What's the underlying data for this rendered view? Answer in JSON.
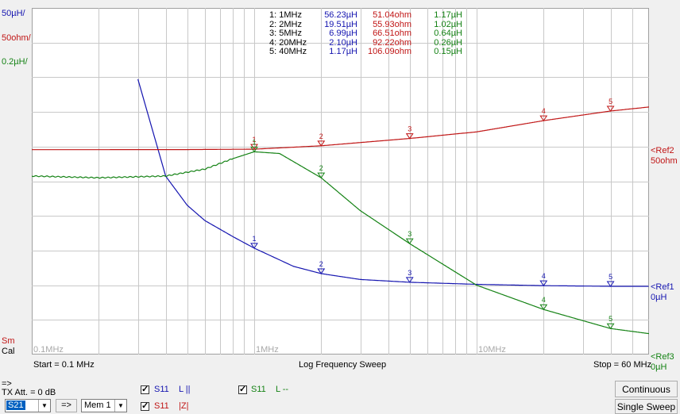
{
  "colors": {
    "blue": "#1515b0",
    "red": "#c01515",
    "green": "#148214",
    "grid": "#c8c8c8"
  },
  "scale_labels": {
    "blue": "50µH/",
    "red": "50ohm/",
    "green": "0.2µH/"
  },
  "ref_labels": [
    {
      "arrow": "<Ref2",
      "unit": "50ohm",
      "color": "red"
    },
    {
      "arrow": "<Ref1",
      "unit": "0µH",
      "color": "blue"
    },
    {
      "arrow": "<Ref3",
      "unit": "0µH",
      "color": "green"
    }
  ],
  "side_labels": {
    "sm": "Sm",
    "cal": "Cal"
  },
  "freq_ticks": [
    "0.1MHz",
    "1MHz",
    "10MHz"
  ],
  "marker_table": [
    {
      "id": "1: 1MHz",
      "l_par": "56.23µH",
      "z": "51.04ohm",
      "l_ser": "1.17µH"
    },
    {
      "id": "2: 2MHz",
      "l_par": "19.51µH",
      "z": "55.93ohm",
      "l_ser": "1.02µH"
    },
    {
      "id": "3: 5MHz",
      "l_par": "6.99µH",
      "z": "66.51ohm",
      "l_ser": "0.64µH"
    },
    {
      "id": "4: 20MHz",
      "l_par": "2.10µH",
      "z": "92.22ohm",
      "l_ser": "0.26µH"
    },
    {
      "id": "5: 40MHz",
      "l_par": "1.17µH",
      "z": "106.09ohm",
      "l_ser": "0.15µH"
    }
  ],
  "bottom_bar": {
    "start": "Start = 0.1 MHz",
    "mode": "Log Frequency Sweep",
    "stop": "Stop = 60 MHz"
  },
  "controls": {
    "arrow_indicator": "=>",
    "tx_att": "TX Att. = 0 dB",
    "port_select": "S21",
    "arrow_button": "=>",
    "mem_select": "Mem 1",
    "traces": [
      {
        "name": "S11",
        "param": "L ||",
        "color": "blue"
      },
      {
        "name": "S11",
        "param": "|Z|",
        "color": "red"
      },
      {
        "name": "S11",
        "param": "L --",
        "color": "green"
      }
    ],
    "continuous": "Continuous",
    "single_sweep": "Single Sweep"
  },
  "chart_data": {
    "type": "line",
    "x_scale": "log",
    "xlim": [
      0.1,
      60
    ],
    "x_unit": "MHz",
    "grid": true,
    "series": [
      {
        "name": "L ||",
        "color": "blue",
        "x": [
          0.3,
          0.4,
          0.5,
          0.6,
          0.8,
          1,
          1.5,
          2,
          3,
          5,
          10,
          20,
          40,
          60
        ],
        "values": [
          300,
          160,
          118,
          96,
          73,
          56.23,
          30,
          19.51,
          11,
          6.99,
          4,
          2.1,
          1.17,
          1.1
        ],
        "ref": 0
      },
      {
        "name": "|Z|",
        "color": "red",
        "x": [
          0.1,
          0.5,
          1,
          2,
          5,
          10,
          20,
          40,
          60
        ],
        "values": [
          50.3,
          50.5,
          51.04,
          55.93,
          66.51,
          76,
          92.22,
          106.09,
          112
        ],
        "ref": 50
      },
      {
        "name": "L --",
        "color": "green",
        "x": [
          0.1,
          0.2,
          0.4,
          0.6,
          0.8,
          1,
          1.3,
          2,
          3,
          5,
          10,
          20,
          40,
          60
        ],
        "values": [
          1.03,
          1.02,
          1.03,
          1.07,
          1.13,
          1.17,
          1.16,
          1.02,
          0.83,
          0.64,
          0.4,
          0.26,
          0.15,
          0.12
        ],
        "ref": 0
      }
    ],
    "markers": [
      {
        "label": "1",
        "x": 1
      },
      {
        "label": "2",
        "x": 2
      },
      {
        "label": "3",
        "x": 5
      },
      {
        "label": "4",
        "x": 20
      },
      {
        "label": "5",
        "x": 40
      }
    ],
    "scale_per_div": {
      "blue": 50,
      "red": 50,
      "green": 0.2
    }
  }
}
